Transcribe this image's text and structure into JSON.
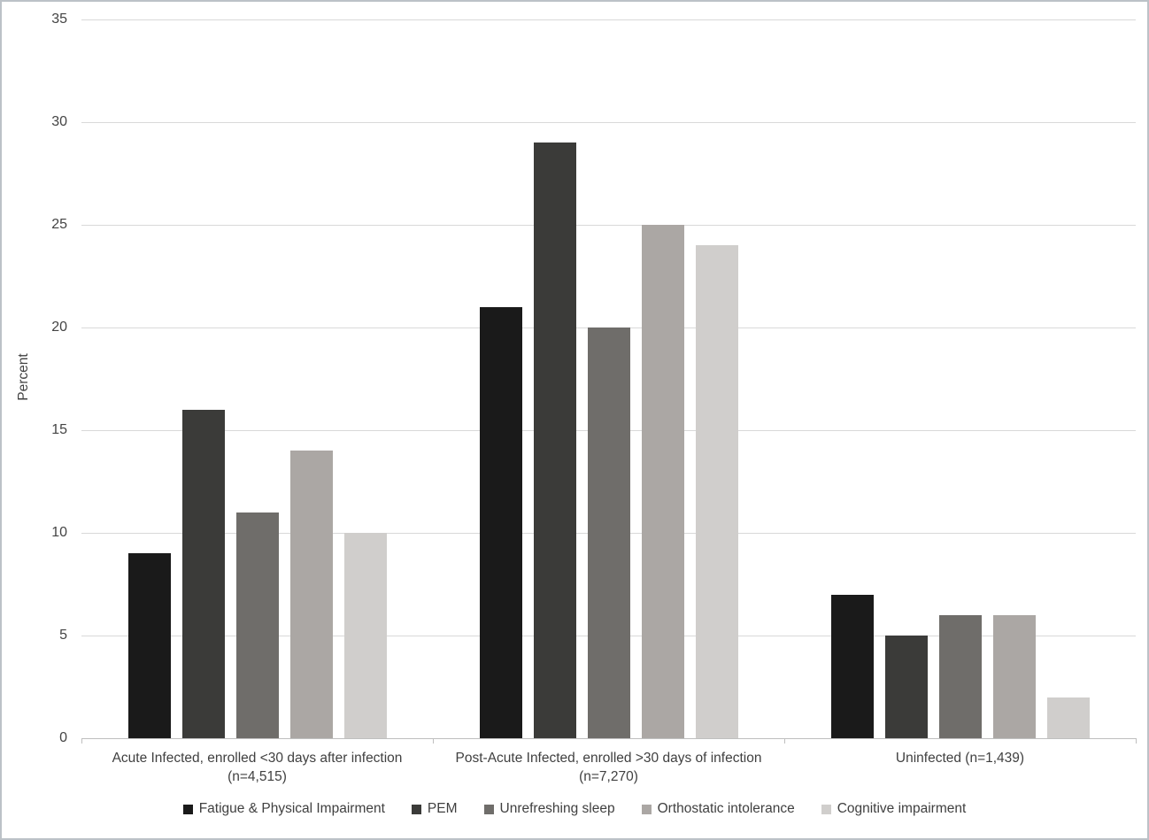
{
  "chart_data": {
    "type": "bar",
    "title": "",
    "xlabel": "",
    "ylabel": "Percent",
    "ylim": [
      0,
      35
    ],
    "yticks": [
      0,
      5,
      10,
      15,
      20,
      25,
      30,
      35
    ],
    "grid": true,
    "legend_position": "bottom",
    "categories": [
      {
        "line1": "Acute Infected, enrolled <30 days after infection",
        "line2": "(n=4,515)"
      },
      {
        "line1": "Post-Acute Infected, enrolled >30 days of infection",
        "line2": "(n=7,270)"
      },
      {
        "line1": "Uninfected (n=1,439)",
        "line2": ""
      }
    ],
    "series": [
      {
        "name": "Fatigue & Physical Impairment",
        "color": "#1a1a1a",
        "values": [
          9,
          21,
          7
        ]
      },
      {
        "name": "PEM",
        "color": "#3b3b39",
        "values": [
          16,
          29,
          5
        ]
      },
      {
        "name": "Unrefreshing sleep",
        "color": "#6f6d6a",
        "values": [
          11,
          20,
          6
        ]
      },
      {
        "name": "Orthostatic intolerance",
        "color": "#aba7a4",
        "values": [
          14,
          25,
          6
        ]
      },
      {
        "name": "Cognitive impairment",
        "color": "#d0cecc",
        "values": [
          10,
          24,
          2
        ]
      }
    ],
    "colors": {
      "gridline": "#d9d9d9",
      "axis_line": "#bfbfbf",
      "text": "#404040",
      "background": "#ffffff",
      "border": "#bcc2c7"
    }
  }
}
